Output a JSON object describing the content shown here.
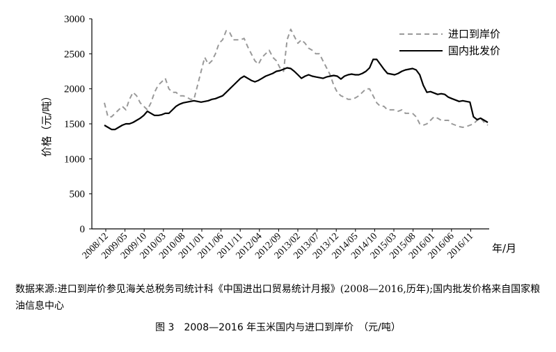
{
  "chart_data": {
    "type": "line",
    "title": "",
    "ylabel": "价格（元/吨）",
    "xlabel": "年/月",
    "ylim": [
      0,
      3000
    ],
    "yticks": [
      "0",
      "500",
      "1000",
      "1500",
      "2000",
      "2500",
      "3000"
    ],
    "xtick_labels": [
      "2008/12",
      "2009/05",
      "2009/10",
      "2010/03",
      "2010/08",
      "2011/01",
      "2011/06",
      "2011/11",
      "2012/04",
      "2012/09",
      "2013/02",
      "2013/07",
      "2013/12",
      "2014/05",
      "2014/10",
      "2015/03",
      "2015/08",
      "2016/01",
      "2016/06",
      "2016/11"
    ],
    "legend_position": "top-right",
    "grid": false,
    "colors": {
      "import": "#999999",
      "domestic": "#000000"
    },
    "series": [
      {
        "name": "进口到岸价",
        "style": "dashed",
        "values": [
          1800,
          1600,
          1600,
          1650,
          1700,
          1750,
          1700,
          1850,
          1950,
          1900,
          1800,
          1750,
          1700,
          1800,
          1950,
          2050,
          2100,
          2150,
          2000,
          1950,
          1950,
          1900,
          1900,
          1880,
          1850,
          1850,
          2050,
          2250,
          2450,
          2350,
          2400,
          2500,
          2650,
          2700,
          2830,
          2800,
          2700,
          2700,
          2700,
          2720,
          2600,
          2500,
          2400,
          2350,
          2450,
          2500,
          2550,
          2450,
          2400,
          2300,
          2250,
          2700,
          2850,
          2750,
          2650,
          2700,
          2650,
          2580,
          2550,
          2500,
          2500,
          2400,
          2300,
          2200,
          2050,
          1950,
          1900,
          1880,
          1850,
          1850,
          1870,
          1900,
          1950,
          2000,
          2000,
          1900,
          1800,
          1750,
          1750,
          1700,
          1700,
          1700,
          1680,
          1700,
          1650,
          1650,
          1650,
          1600,
          1500,
          1480,
          1500,
          1550,
          1600,
          1580,
          1550,
          1550,
          1550,
          1500,
          1480,
          1460,
          1450,
          1460,
          1480,
          1500,
          1550,
          1580,
          1520,
          1480
        ]
      },
      {
        "name": "国内批发价",
        "style": "solid",
        "values": [
          1480,
          1450,
          1420,
          1420,
          1450,
          1480,
          1500,
          1500,
          1520,
          1550,
          1580,
          1620,
          1680,
          1650,
          1620,
          1620,
          1630,
          1650,
          1650,
          1700,
          1750,
          1780,
          1800,
          1810,
          1820,
          1830,
          1820,
          1810,
          1820,
          1830,
          1850,
          1860,
          1880,
          1900,
          1950,
          2000,
          2050,
          2100,
          2150,
          2180,
          2150,
          2120,
          2100,
          2120,
          2150,
          2180,
          2200,
          2220,
          2250,
          2260,
          2280,
          2300,
          2290,
          2250,
          2200,
          2150,
          2180,
          2200,
          2180,
          2170,
          2160,
          2150,
          2170,
          2180,
          2190,
          2180,
          2140,
          2180,
          2200,
          2210,
          2200,
          2200,
          2220,
          2250,
          2300,
          2420,
          2420,
          2350,
          2280,
          2220,
          2210,
          2200,
          2220,
          2250,
          2270,
          2280,
          2290,
          2270,
          2200,
          2050,
          1950,
          1960,
          1940,
          1920,
          1930,
          1920,
          1880,
          1860,
          1840,
          1820,
          1830,
          1820,
          1810,
          1600,
          1560,
          1580,
          1550,
          1520
        ]
      }
    ]
  },
  "source_note": "数据来源:进口到岸价参见海关总税务司统计科《中国进出口贸易统计月报》(2008—2016,历年);国内批发价格来自国家粮油信息中心",
  "caption": "图 3　2008—2016 年玉米国内与进口到岸价　（元/吨）"
}
